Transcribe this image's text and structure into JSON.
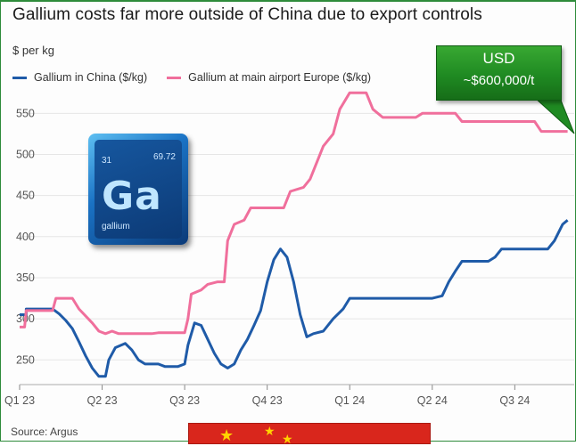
{
  "title": "Gallium costs far more outside of China due to export controls",
  "unit_label": "$ per kg",
  "callout": {
    "line1": "USD",
    "line2": "~$600,000/t"
  },
  "source": "Source: Argus",
  "element_tile": {
    "number": "31",
    "mass": "69.72",
    "symbol": "Ga",
    "name": "gallium"
  },
  "colors": {
    "china": "#1f5ba8",
    "europe": "#f06f9c",
    "callout": "#1f8a22"
  },
  "chart_data": {
    "type": "line",
    "title": "Gallium costs far more outside of China due to export controls",
    "ylabel": "$ per kg",
    "ylim": [
      220,
      585
    ],
    "yticks": [
      250,
      300,
      350,
      400,
      450,
      500,
      550
    ],
    "xlim": [
      2023.0,
      2024.68
    ],
    "xticks": [
      {
        "label": "Q1 23",
        "x": 2023.0
      },
      {
        "label": "Q2 23",
        "x": 2023.25
      },
      {
        "label": "Q3 23",
        "x": 2023.5
      },
      {
        "label": "Q4 23",
        "x": 2023.75
      },
      {
        "label": "Q1 24",
        "x": 2024.0
      },
      {
        "label": "Q2 24",
        "x": 2024.25
      },
      {
        "label": "Q3 24",
        "x": 2024.5
      }
    ],
    "legend_position": "top-left",
    "series": [
      {
        "name": "Gallium in China ($/kg)",
        "color": "#1f5ba8",
        "points": [
          [
            2023.0,
            305
          ],
          [
            2023.02,
            305
          ],
          [
            2023.02,
            312
          ],
          [
            2023.1,
            312
          ],
          [
            2023.12,
            306
          ],
          [
            2023.14,
            298
          ],
          [
            2023.16,
            288
          ],
          [
            2023.18,
            272
          ],
          [
            2023.2,
            255
          ],
          [
            2023.22,
            240
          ],
          [
            2023.24,
            230
          ],
          [
            2023.26,
            230
          ],
          [
            2023.27,
            250
          ],
          [
            2023.29,
            265
          ],
          [
            2023.32,
            270
          ],
          [
            2023.34,
            262
          ],
          [
            2023.36,
            250
          ],
          [
            2023.38,
            245
          ],
          [
            2023.42,
            245
          ],
          [
            2023.44,
            242
          ],
          [
            2023.48,
            242
          ],
          [
            2023.5,
            245
          ],
          [
            2023.51,
            268
          ],
          [
            2023.53,
            295
          ],
          [
            2023.55,
            292
          ],
          [
            2023.57,
            275
          ],
          [
            2023.59,
            258
          ],
          [
            2023.61,
            245
          ],
          [
            2023.63,
            240
          ],
          [
            2023.65,
            245
          ],
          [
            2023.67,
            262
          ],
          [
            2023.69,
            275
          ],
          [
            2023.71,
            292
          ],
          [
            2023.73,
            310
          ],
          [
            2023.75,
            345
          ],
          [
            2023.77,
            372
          ],
          [
            2023.79,
            385
          ],
          [
            2023.81,
            375
          ],
          [
            2023.83,
            345
          ],
          [
            2023.85,
            305
          ],
          [
            2023.87,
            278
          ],
          [
            2023.89,
            282
          ],
          [
            2023.92,
            285
          ],
          [
            2023.95,
            300
          ],
          [
            2023.98,
            312
          ],
          [
            2024.0,
            325
          ],
          [
            2024.03,
            325
          ],
          [
            2024.1,
            325
          ],
          [
            2024.25,
            325
          ],
          [
            2024.28,
            328
          ],
          [
            2024.3,
            345
          ],
          [
            2024.32,
            358
          ],
          [
            2024.34,
            370
          ],
          [
            2024.42,
            370
          ],
          [
            2024.44,
            375
          ],
          [
            2024.46,
            385
          ],
          [
            2024.6,
            385
          ],
          [
            2024.62,
            395
          ],
          [
            2024.645,
            415
          ],
          [
            2024.66,
            420
          ]
        ]
      },
      {
        "name": "Gallium at main airport Europe ($/kg)",
        "color": "#f06f9c",
        "points": [
          [
            2023.0,
            290
          ],
          [
            2023.015,
            290
          ],
          [
            2023.02,
            310
          ],
          [
            2023.1,
            310
          ],
          [
            2023.11,
            325
          ],
          [
            2023.16,
            325
          ],
          [
            2023.18,
            312
          ],
          [
            2023.22,
            295
          ],
          [
            2023.24,
            285
          ],
          [
            2023.26,
            282
          ],
          [
            2023.28,
            285
          ],
          [
            2023.3,
            282
          ],
          [
            2023.4,
            282
          ],
          [
            2023.42,
            283
          ],
          [
            2023.5,
            283
          ],
          [
            2023.51,
            300
          ],
          [
            2023.52,
            330
          ],
          [
            2023.55,
            335
          ],
          [
            2023.57,
            342
          ],
          [
            2023.6,
            345
          ],
          [
            2023.62,
            345
          ],
          [
            2023.63,
            395
          ],
          [
            2023.65,
            415
          ],
          [
            2023.68,
            420
          ],
          [
            2023.7,
            435
          ],
          [
            2023.8,
            435
          ],
          [
            2023.82,
            455
          ],
          [
            2023.86,
            460
          ],
          [
            2023.88,
            470
          ],
          [
            2023.9,
            490
          ],
          [
            2023.92,
            510
          ],
          [
            2023.95,
            525
          ],
          [
            2023.97,
            555
          ],
          [
            2024.0,
            575
          ],
          [
            2024.05,
            575
          ],
          [
            2024.07,
            555
          ],
          [
            2024.1,
            545
          ],
          [
            2024.2,
            545
          ],
          [
            2024.22,
            550
          ],
          [
            2024.32,
            550
          ],
          [
            2024.34,
            540
          ],
          [
            2024.56,
            540
          ],
          [
            2024.58,
            528
          ],
          [
            2024.66,
            528
          ]
        ]
      }
    ]
  }
}
